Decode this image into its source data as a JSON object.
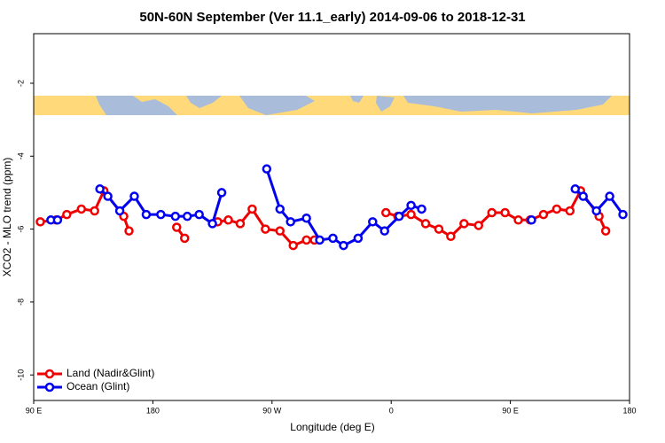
{
  "chart_data": {
    "type": "line",
    "title": "50N-60N September (Ver 11.1_early)   2014-09-06 to 2018-12-31",
    "x_label": "Longitude (deg E)",
    "y_label": "XCO2 - MLO trend (ppm)",
    "xlim": [
      90,
      540
    ],
    "ylim": [
      -10.7,
      -0.64
    ],
    "xticks": [
      {
        "value": 90,
        "label": "90 E"
      },
      {
        "value": 180,
        "label": "180"
      },
      {
        "value": 270,
        "label": "90 W"
      },
      {
        "value": 360,
        "label": "0"
      },
      {
        "value": 450,
        "label": "90 E"
      },
      {
        "value": 540,
        "label": "180"
      }
    ],
    "yticks": [
      -10,
      -8,
      -6,
      -4,
      -2
    ],
    "legend": "bottom-left",
    "series": [
      {
        "name": "Land (Nadir&Glint)",
        "color": "#ee0000",
        "x": [
          95,
          107,
          115,
          126,
          136,
          143,
          158,
          162,
          null,
          198,
          204,
          null,
          229,
          237,
          246,
          255,
          265,
          276,
          286,
          296,
          302,
          null,
          356,
          365,
          375,
          386,
          396,
          405,
          415,
          426,
          436,
          446,
          456,
          465,
          475,
          485,
          495,
          503,
          517,
          522
        ],
        "values": [
          -5.8,
          -5.75,
          -5.6,
          -5.45,
          -5.5,
          -4.95,
          -5.65,
          -6.05,
          null,
          -5.95,
          -6.25,
          null,
          -5.8,
          -5.75,
          -5.85,
          -5.45,
          -6.0,
          -6.05,
          -6.45,
          -6.3,
          -6.3,
          null,
          -5.55,
          -5.65,
          -5.6,
          -5.85,
          -6.0,
          -6.2,
          -5.85,
          -5.9,
          -5.55,
          -5.55,
          -5.75,
          -5.75,
          -5.6,
          -5.45,
          -5.5,
          -4.95,
          -5.65,
          -6.05
        ]
      },
      {
        "name": "Ocean (Glint)",
        "color": "#0000ee",
        "x": [
          103,
          108,
          null,
          140,
          146,
          155,
          166,
          175,
          186,
          197,
          206,
          215,
          225,
          232,
          null,
          266,
          276,
          284,
          296,
          306,
          316,
          324,
          335,
          346,
          355,
          366,
          375,
          383,
          null,
          466,
          null,
          499,
          505,
          515,
          525,
          535
        ],
        "values": [
          -5.75,
          -5.75,
          null,
          -4.9,
          -5.1,
          -5.5,
          -5.1,
          -5.6,
          -5.6,
          -5.65,
          -5.65,
          -5.6,
          -5.85,
          -5.0,
          null,
          -4.35,
          -5.45,
          -5.8,
          -5.7,
          -6.3,
          -6.25,
          -6.45,
          -6.25,
          -5.8,
          -6.05,
          -5.65,
          -5.35,
          -5.45,
          null,
          -5.75,
          null,
          -4.9,
          -5.1,
          -5.5,
          -5.1,
          -5.6
        ]
      }
    ]
  }
}
